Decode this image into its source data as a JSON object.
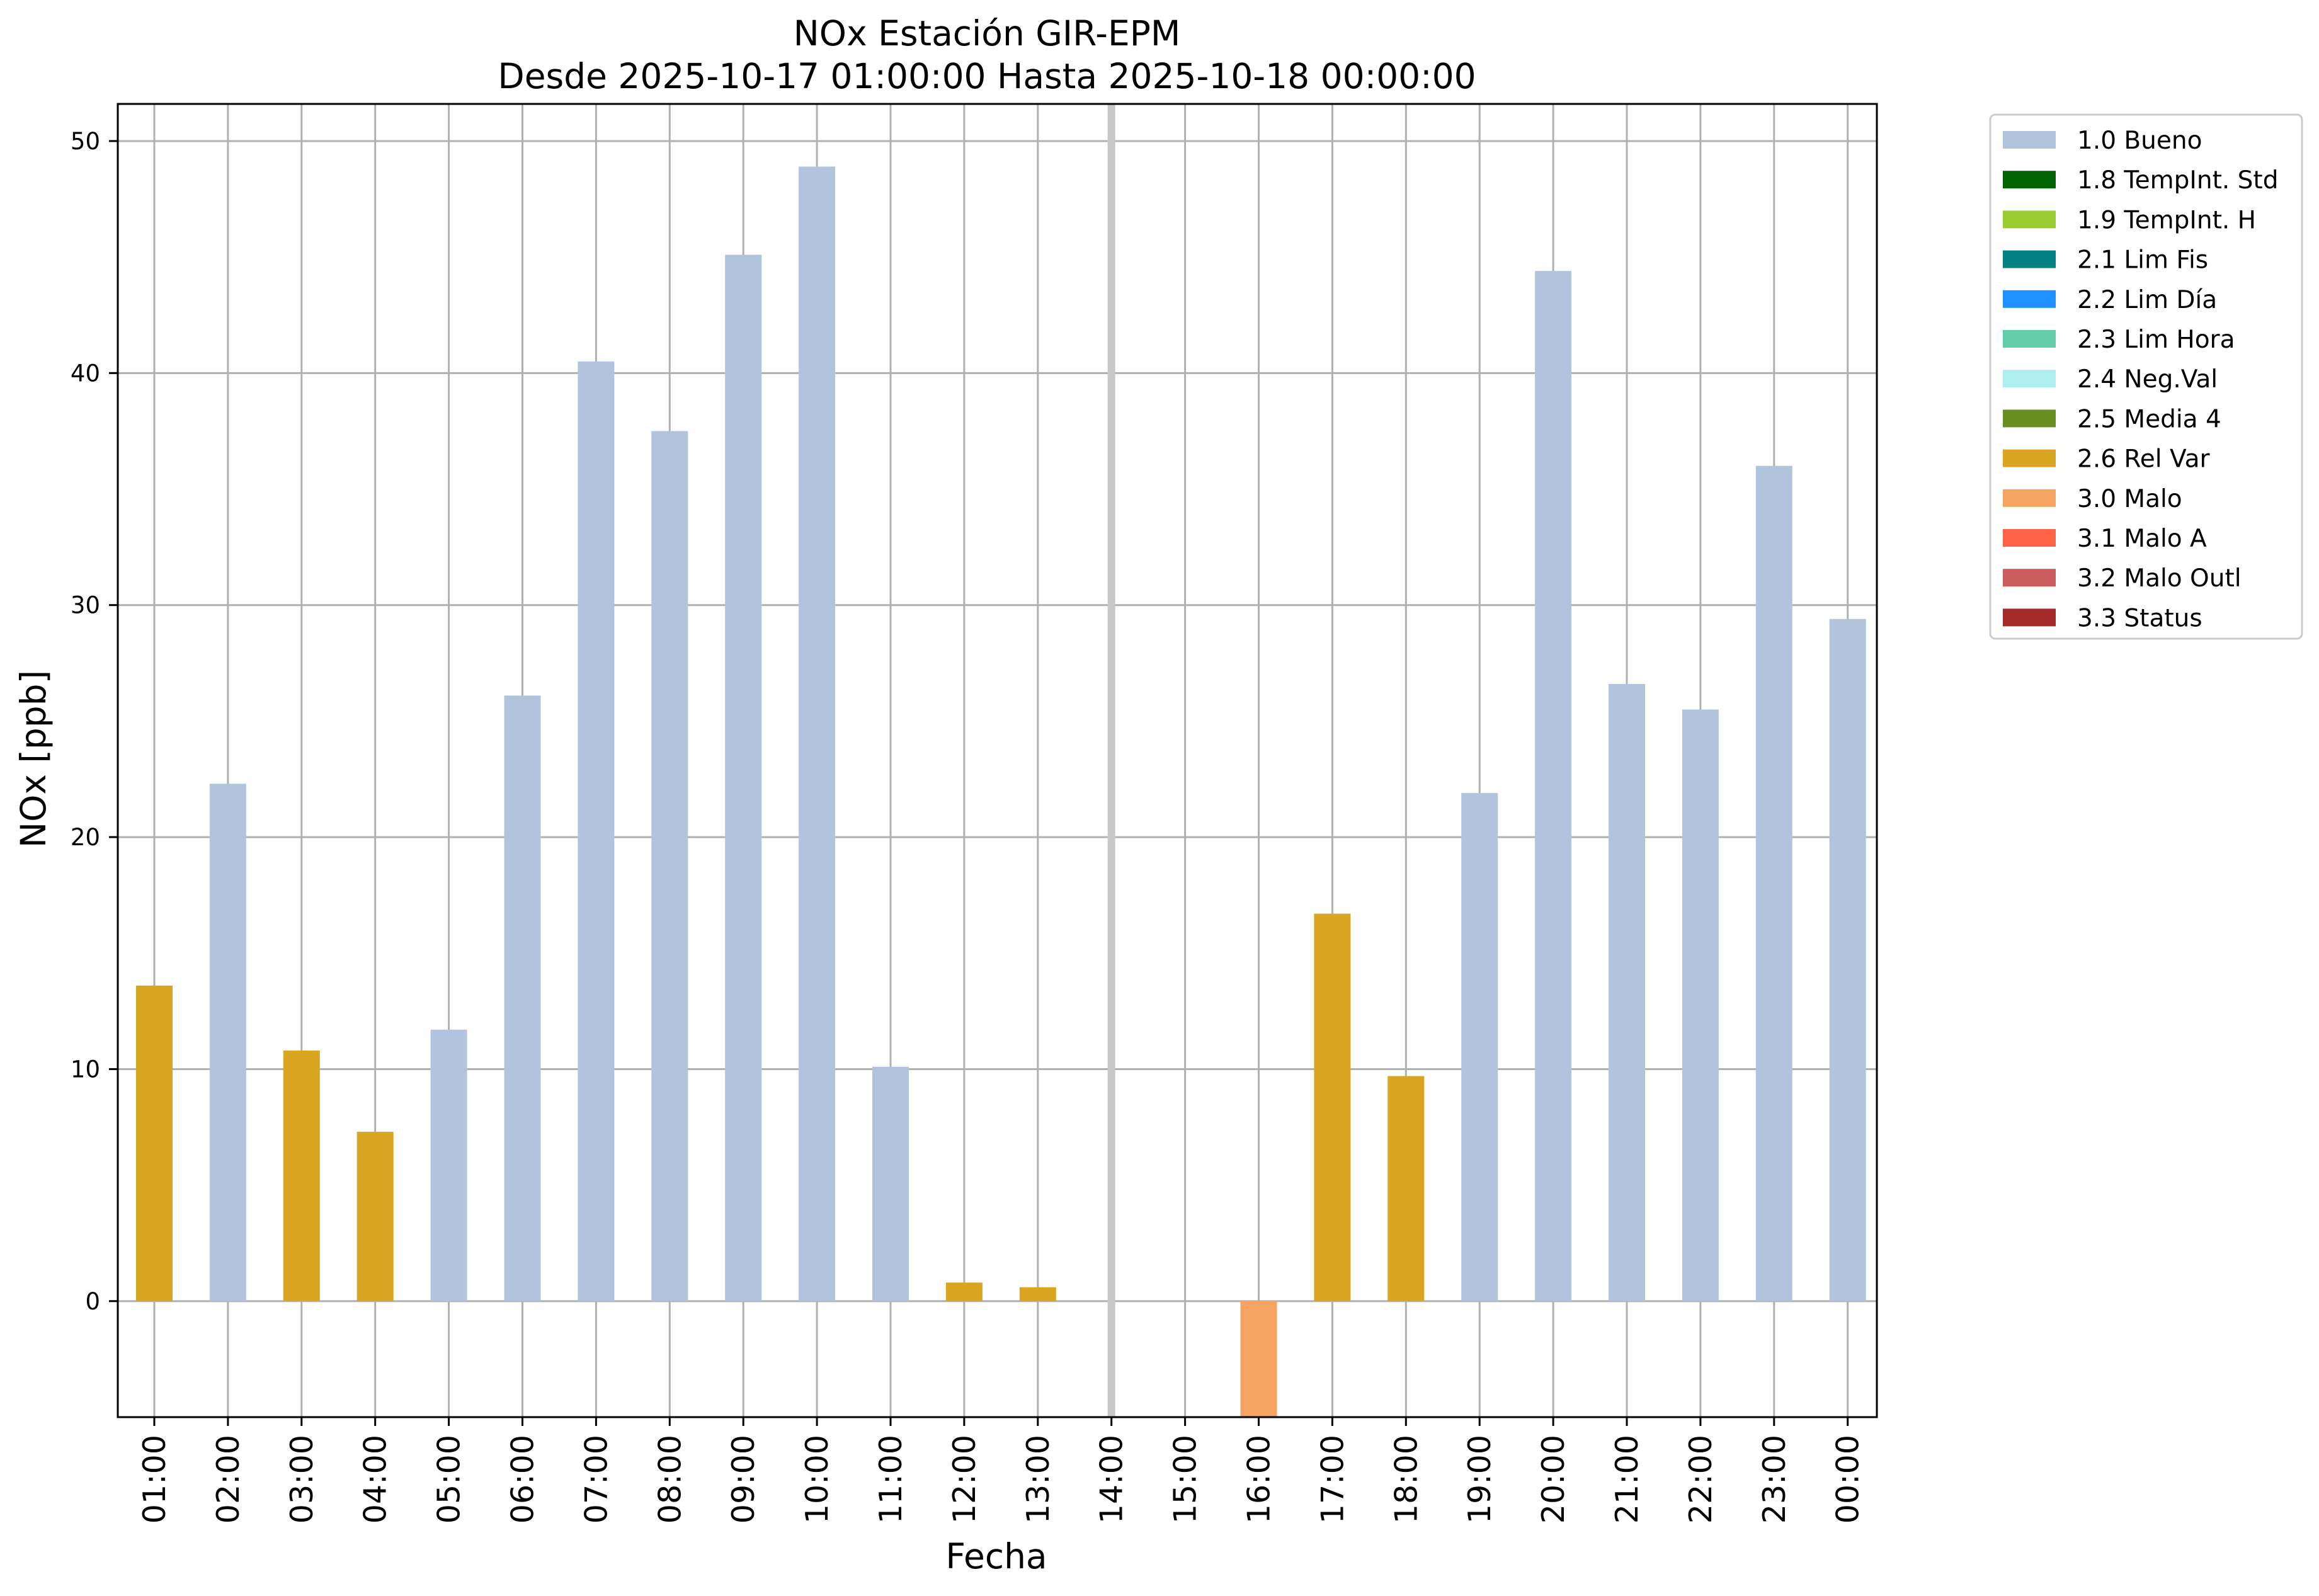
{
  "chart_data": {
    "type": "bar",
    "title": "NOx Estación GIR-EPM",
    "subtitle": "Desde 2025-10-17 01:00:00 Hasta 2025-10-18 00:00:00",
    "xlabel": "Fecha",
    "ylabel": "NOx [ppb]",
    "ylim": [
      -5,
      51.6
    ],
    "yticks": [
      0,
      10,
      20,
      30,
      40,
      50
    ],
    "grid": true,
    "legend_position": "outside-right",
    "categories": [
      "01:00",
      "02:00",
      "03:00",
      "04:00",
      "05:00",
      "06:00",
      "07:00",
      "08:00",
      "09:00",
      "10:00",
      "11:00",
      "12:00",
      "13:00",
      "14:00",
      "15:00",
      "16:00",
      "17:00",
      "18:00",
      "19:00",
      "20:00",
      "21:00",
      "22:00",
      "23:00",
      "00:00"
    ],
    "values": [
      13.6,
      22.3,
      10.8,
      7.3,
      11.7,
      26.1,
      40.5,
      37.5,
      45.1,
      48.9,
      10.1,
      0.8,
      0.6,
      null,
      null,
      -5.0,
      16.7,
      9.7,
      21.9,
      44.4,
      26.6,
      25.5,
      36.0,
      29.4
    ],
    "flags": [
      "2.6",
      "1.0",
      "2.6",
      "2.6",
      "1.0",
      "1.0",
      "1.0",
      "1.0",
      "1.0",
      "1.0",
      "1.0",
      "2.6",
      "2.6",
      null,
      null,
      "3.0",
      "2.6",
      "2.6",
      "1.0",
      "1.0",
      "1.0",
      "1.0",
      "1.0",
      "1.0"
    ],
    "vertical_marker_category": "14:00",
    "vertical_marker_color": "#c8c8c8",
    "legend": [
      {
        "code": "1.0",
        "label": "1.0 Bueno",
        "color": "#b0c4de"
      },
      {
        "code": "1.8",
        "label": "1.8 TempInt. Std",
        "color": "#006400"
      },
      {
        "code": "1.9",
        "label": "1.9 TempInt. H",
        "color": "#9acd32"
      },
      {
        "code": "2.1",
        "label": "2.1 Lim Fis",
        "color": "#008080"
      },
      {
        "code": "2.2",
        "label": "2.2 Lim Día",
        "color": "#1e90ff"
      },
      {
        "code": "2.3",
        "label": "2.3 Lim Hora",
        "color": "#66cdaa"
      },
      {
        "code": "2.4",
        "label": "2.4 Neg.Val",
        "color": "#afeeee"
      },
      {
        "code": "2.5",
        "label": "2.5 Media 4",
        "color": "#6b8e23"
      },
      {
        "code": "2.6",
        "label": "2.6 Rel Var",
        "color": "#daa520"
      },
      {
        "code": "3.0",
        "label": "3.0 Malo",
        "color": "#f4a460"
      },
      {
        "code": "3.1",
        "label": "3.1 Malo A",
        "color": "#ff6347"
      },
      {
        "code": "3.2",
        "label": "3.2 Malo Outl",
        "color": "#cd5c5c"
      },
      {
        "code": "3.3",
        "label": "3.3 Status",
        "color": "#a52a2a"
      }
    ]
  }
}
